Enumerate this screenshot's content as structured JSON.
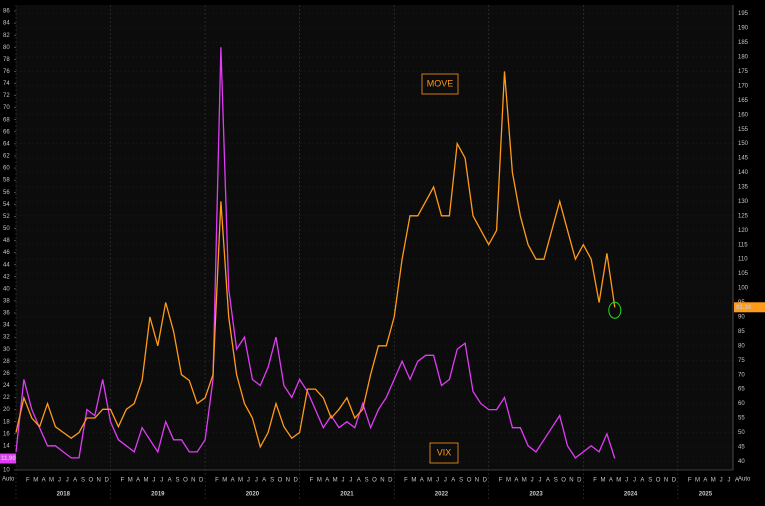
{
  "chart_data": {
    "type": "line",
    "x": [
      "2018-01",
      "2018-02",
      "2018-03",
      "2018-04",
      "2018-05",
      "2018-06",
      "2018-07",
      "2018-08",
      "2018-09",
      "2018-10",
      "2018-11",
      "2018-12",
      "2019-01",
      "2019-02",
      "2019-03",
      "2019-04",
      "2019-05",
      "2019-06",
      "2019-07",
      "2019-08",
      "2019-09",
      "2019-10",
      "2019-11",
      "2019-12",
      "2020-01",
      "2020-02",
      "2020-03",
      "2020-04",
      "2020-05",
      "2020-06",
      "2020-07",
      "2020-08",
      "2020-09",
      "2020-10",
      "2020-11",
      "2020-12",
      "2021-01",
      "2021-02",
      "2021-03",
      "2021-04",
      "2021-05",
      "2021-06",
      "2021-07",
      "2021-08",
      "2021-09",
      "2021-10",
      "2021-11",
      "2021-12",
      "2022-01",
      "2022-02",
      "2022-03",
      "2022-04",
      "2022-05",
      "2022-06",
      "2022-07",
      "2022-08",
      "2022-09",
      "2022-10",
      "2022-11",
      "2022-12",
      "2023-01",
      "2023-02",
      "2023-03",
      "2023-04",
      "2023-05",
      "2023-06",
      "2023-07",
      "2023-08",
      "2023-09",
      "2023-10",
      "2023-11",
      "2023-12",
      "2024-01",
      "2024-02",
      "2024-03",
      "2024-04",
      "2024-05"
    ],
    "xlim": [
      "2018-01",
      "2025-08"
    ],
    "series": [
      {
        "name": "VIX",
        "color": "#e03cf5",
        "axis": "y",
        "last_value_label": "11.90",
        "values": [
          13,
          25,
          20,
          17,
          14,
          14,
          13,
          12,
          12,
          20,
          19,
          25,
          18,
          15,
          14,
          13,
          17,
          15,
          13,
          18,
          15,
          15,
          13,
          13,
          15,
          25,
          80,
          40,
          30,
          32,
          25,
          24,
          27,
          32,
          24,
          22,
          25,
          23,
          20,
          17,
          19,
          17,
          18,
          17,
          21,
          17,
          20,
          22,
          25,
          28,
          25,
          28,
          29,
          29,
          24,
          25,
          30,
          31,
          23,
          21,
          20,
          20,
          22,
          17,
          17,
          14,
          13,
          15,
          17,
          19,
          14,
          12,
          13,
          14,
          13,
          16,
          11.9
        ]
      },
      {
        "name": "MOVE",
        "color": "#ff9a1a",
        "axis": "y2",
        "last_value_label": "93.34",
        "values": [
          50,
          62,
          55,
          52,
          60,
          52,
          50,
          48,
          50,
          55,
          55,
          58,
          58,
          52,
          58,
          60,
          68,
          90,
          80,
          95,
          85,
          70,
          68,
          60,
          62,
          70,
          130,
          90,
          70,
          60,
          55,
          45,
          50,
          60,
          52,
          48,
          50,
          65,
          65,
          62,
          55,
          58,
          62,
          55,
          58,
          70,
          80,
          80,
          90,
          110,
          125,
          125,
          130,
          135,
          125,
          125,
          150,
          145,
          125,
          120,
          115,
          120,
          175,
          140,
          125,
          115,
          110,
          110,
          120,
          130,
          120,
          110,
          115,
          110,
          95,
          112,
          93.34
        ]
      }
    ],
    "ylim": [
      10,
      87
    ],
    "yticks": [
      10,
      12,
      14,
      16,
      18,
      20,
      22,
      24,
      26,
      28,
      30,
      32,
      34,
      36,
      38,
      40,
      42,
      44,
      46,
      48,
      50,
      52,
      54,
      56,
      58,
      60,
      62,
      64,
      66,
      68,
      70,
      72,
      74,
      76,
      78,
      80,
      82,
      84,
      86
    ],
    "y2lim": [
      37,
      198
    ],
    "y2ticks": [
      40,
      45,
      50,
      55,
      60,
      65,
      70,
      75,
      80,
      85,
      90,
      95,
      100,
      105,
      110,
      115,
      120,
      125,
      130,
      135,
      140,
      145,
      150,
      155,
      160,
      165,
      170,
      175,
      180,
      185,
      190,
      195
    ],
    "months": [
      "J",
      "F",
      "M",
      "A",
      "M",
      "J",
      "J",
      "A",
      "S",
      "O",
      "N",
      "D"
    ],
    "years": [
      "2018",
      "2019",
      "2020",
      "2021",
      "2022",
      "2023",
      "2024",
      "2025"
    ],
    "y_axis_note": "Auto",
    "y2_axis_note": "Auto",
    "grid": true
  }
}
